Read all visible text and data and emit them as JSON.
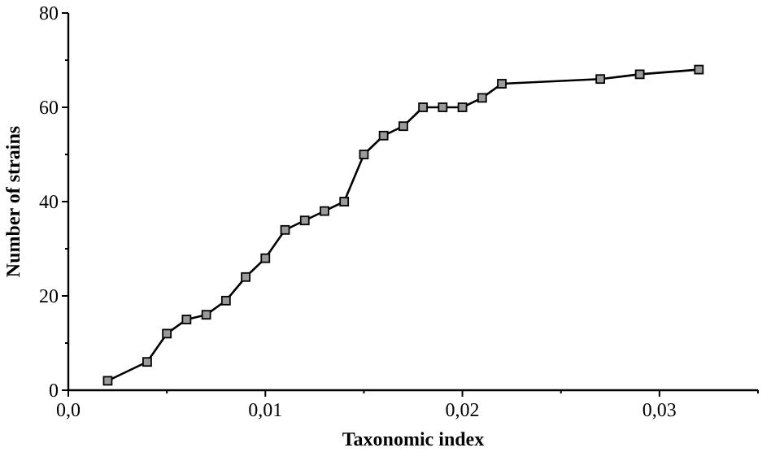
{
  "chart_data": {
    "type": "line",
    "xlabel": "Taxonomic index",
    "ylabel": "Number of strains",
    "x": [
      0.002,
      0.004,
      0.005,
      0.006,
      0.007,
      0.008,
      0.009,
      0.01,
      0.011,
      0.012,
      0.013,
      0.014,
      0.015,
      0.016,
      0.017,
      0.018,
      0.019,
      0.02,
      0.021,
      0.022,
      0.027,
      0.029,
      0.032
    ],
    "series": [
      {
        "color": "#000000",
        "values": [
          2,
          6,
          12,
          15,
          16,
          19,
          24,
          28,
          34,
          36,
          38,
          40,
          50,
          54,
          56,
          60,
          60,
          60,
          62,
          65,
          66,
          67,
          68
        ]
      }
    ],
    "xlim": [
      0,
      0.035
    ],
    "xticks": [
      {
        "value": 0,
        "label": "0,0"
      },
      {
        "value": 0.005,
        "label": null
      },
      {
        "value": 0.01,
        "label": "0,01"
      },
      {
        "value": 0.015,
        "label": null
      },
      {
        "value": 0.02,
        "label": "0,02"
      },
      {
        "value": 0.025,
        "label": null
      },
      {
        "value": 0.03,
        "label": "0,03"
      },
      {
        "value": 0.035,
        "label": null
      }
    ],
    "ylim": [
      0,
      80
    ],
    "yticks": [
      0,
      {
        "value": 10,
        "label": null
      },
      20,
      {
        "value": 30,
        "label": null
      },
      40,
      {
        "value": 50,
        "label": null
      },
      60,
      {
        "value": 70,
        "label": null
      },
      80
    ],
    "marker": "square",
    "line_style": "solid"
  }
}
